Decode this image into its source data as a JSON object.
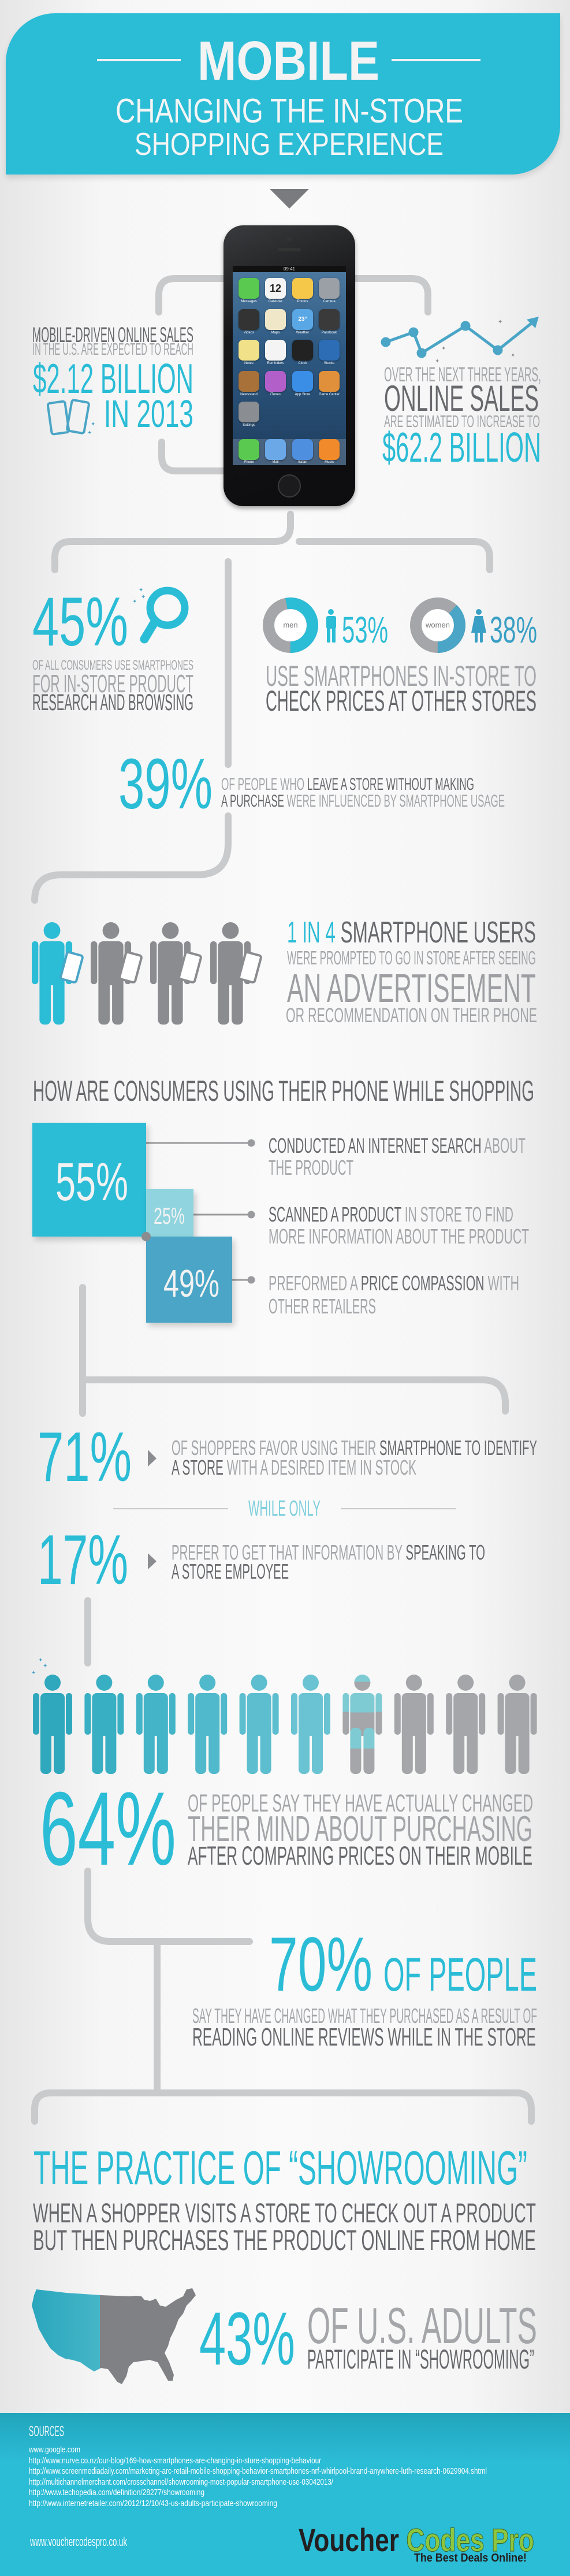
{
  "colors": {
    "accent": "#2bbcd6",
    "accent_dark": "#4aa5c6",
    "accent_light": "#8fd4de",
    "text_dark": "#68696d",
    "text_light": "#a4a6a9",
    "connector": "#c9cacc",
    "logo_green": "#8dc63f"
  },
  "header": {
    "title": "MOBILE",
    "subtitle_line1": "CHANGING THE IN-STORE",
    "subtitle_line2": "SHOPPING EXPERIENCE"
  },
  "phone": {
    "time": "09:41",
    "calendar_day": "Wednesday",
    "calendar_date": "12",
    "weather_temp": "23°",
    "apps": [
      "Messages",
      "Calendar",
      "Photos",
      "Camera",
      "Videos",
      "Maps",
      "Weather",
      "Passbook",
      "Notes",
      "Reminders",
      "Clock",
      "Stocks",
      "Newsstand",
      "iTunes",
      "App Store",
      "Game Center",
      "Settings"
    ],
    "dock": [
      "Phone",
      "Mail",
      "Safari",
      "Music"
    ]
  },
  "stat_sales_2013": {
    "line1": "MOBILE-DRIVEN ONLINE SALES",
    "line2": "IN THE U.S. ARE EXPECTED TO REACH",
    "value": "$2.12 BILLION",
    "year": "IN 2013"
  },
  "stat_online_sales": {
    "line1": "OVER THE NEXT THREE YEARS,",
    "line2": "ONLINE SALES",
    "line3": "ARE ESTIMATED TO INCREASE TO",
    "value": "$62.2 BILLION"
  },
  "stat_research": {
    "value": "45%",
    "line1": "OF ALL CONSUMERS USE SMARTPHONES",
    "line2": "FOR IN-STORE PRODUCT",
    "line3": "RESEARCH AND BROWSING"
  },
  "stat_price_check": {
    "men": {
      "label": "men",
      "value": "53%",
      "percent": 53
    },
    "women": {
      "label": "women",
      "value": "38%",
      "percent": 38
    },
    "line1": "USE SMARTPHONES IN-STORE TO",
    "line2": "CHECK PRICES AT OTHER STORES"
  },
  "stat_influenced": {
    "value": "39%",
    "line1": [
      "OF PEOPLE WHO ",
      "LEAVE A STORE WITHOUT MAKING"
    ],
    "line2": [
      "A PURCHASE ",
      "WERE INFLUENCED BY SMARTPHONE USAGE"
    ]
  },
  "stat_advert": {
    "highlighted": 1,
    "total": 4,
    "line1": [
      "1 IN 4 ",
      "SMARTPHONE USERS"
    ],
    "line2": "WERE PROMPTED TO GO IN STORE AFTER SEEING",
    "line3": "AN ADVERTISEMENT",
    "line4": "OR RECOMMENDATION ON THEIR PHONE"
  },
  "usage": {
    "heading": "HOW ARE CONSUMERS USING THEIR PHONE WHILE SHOPPING",
    "items": [
      {
        "value": "55%",
        "line1": [
          "CONDUCTED AN INTERNET SEARCH ",
          "ABOUT"
        ],
        "line2": "THE PRODUCT"
      },
      {
        "value": "25%",
        "line1": [
          "SCANNED A PRODUCT ",
          "IN STORE TO FIND"
        ],
        "line2": "MORE INFORMATION ABOUT THE PRODUCT"
      },
      {
        "value": "49%",
        "line1": [
          "PREFORMED A ",
          "PRICE COMPASSION ",
          "WITH"
        ],
        "line2": "OTHER RETAILERS"
      }
    ]
  },
  "stat_identify": {
    "value": "71%",
    "line1": [
      "OF SHOPPERS FAVOR USING THEIR ",
      "SMARTPHONE TO IDENTIFY"
    ],
    "line2": [
      "A STORE ",
      "WITH A DESIRED ITEM IN STOCK"
    ]
  },
  "while_only": "WHILE ONLY",
  "stat_employee": {
    "value": "17%",
    "line1": [
      "PREFER TO GET THAT INFORMATION BY ",
      "SPEAKING TO"
    ],
    "line2": "A STORE EMPLOYEE"
  },
  "stat_changed_mind": {
    "value": "64%",
    "percent": 64,
    "line1": "OF PEOPLE SAY THEY HAVE ACTUALLY CHANGED",
    "line2": "THEIR MIND ABOUT PURCHASING",
    "line3": "AFTER COMPARING PRICES ON THEIR MOBILE"
  },
  "stat_reviews": {
    "value": "70%",
    "suffix": "OF PEOPLE",
    "line1": "SAY THEY HAVE CHANGED WHAT THEY PURCHASED AS A RESULT OF",
    "line2": "READING ONLINE REVIEWS WHILE IN THE STORE"
  },
  "showrooming": {
    "heading": "THE PRACTICE OF “SHOWROOMING”",
    "line1": "WHEN A SHOPPER VISITS A STORE TO CHECK OUT A PRODUCT",
    "line2": "BUT THEN PURCHASES THE PRODUCT ONLINE FROM HOME",
    "value": "43%",
    "percent": 43,
    "suffix": "OF U.S. ADULTS",
    "line3": "PARTICIPATE IN “SHOWROOMING”"
  },
  "footer": {
    "sources_label": "SOURCES",
    "sources": [
      "www.google.com",
      "http://www.nurve.co.nz/our-blog/169-how-smartphones-are-changing-in-store-shopping-behaviour",
      "http://www.screenmediadaily.com/marketing-arc-retail-mobile-shopping-behavior-smartphones-nrf-whirlpool-brand-anywhere-luth-research-0629904.shtml",
      "http://multichannelmerchant.com/crosschannel/showrooming-most-popular-smartphone-use-03042013/",
      "http://www.techopedia.com/definition/28277/showrooming",
      "http://www.internetretailer.com/2012/12/10/43-us-adults-participate-showrooming"
    ],
    "site": "www.vouchercodespro.co.uk",
    "logo": {
      "word1": "Voucher",
      "word2": "Codes Pro",
      "tagline": "The Best Deals Online!"
    }
  }
}
